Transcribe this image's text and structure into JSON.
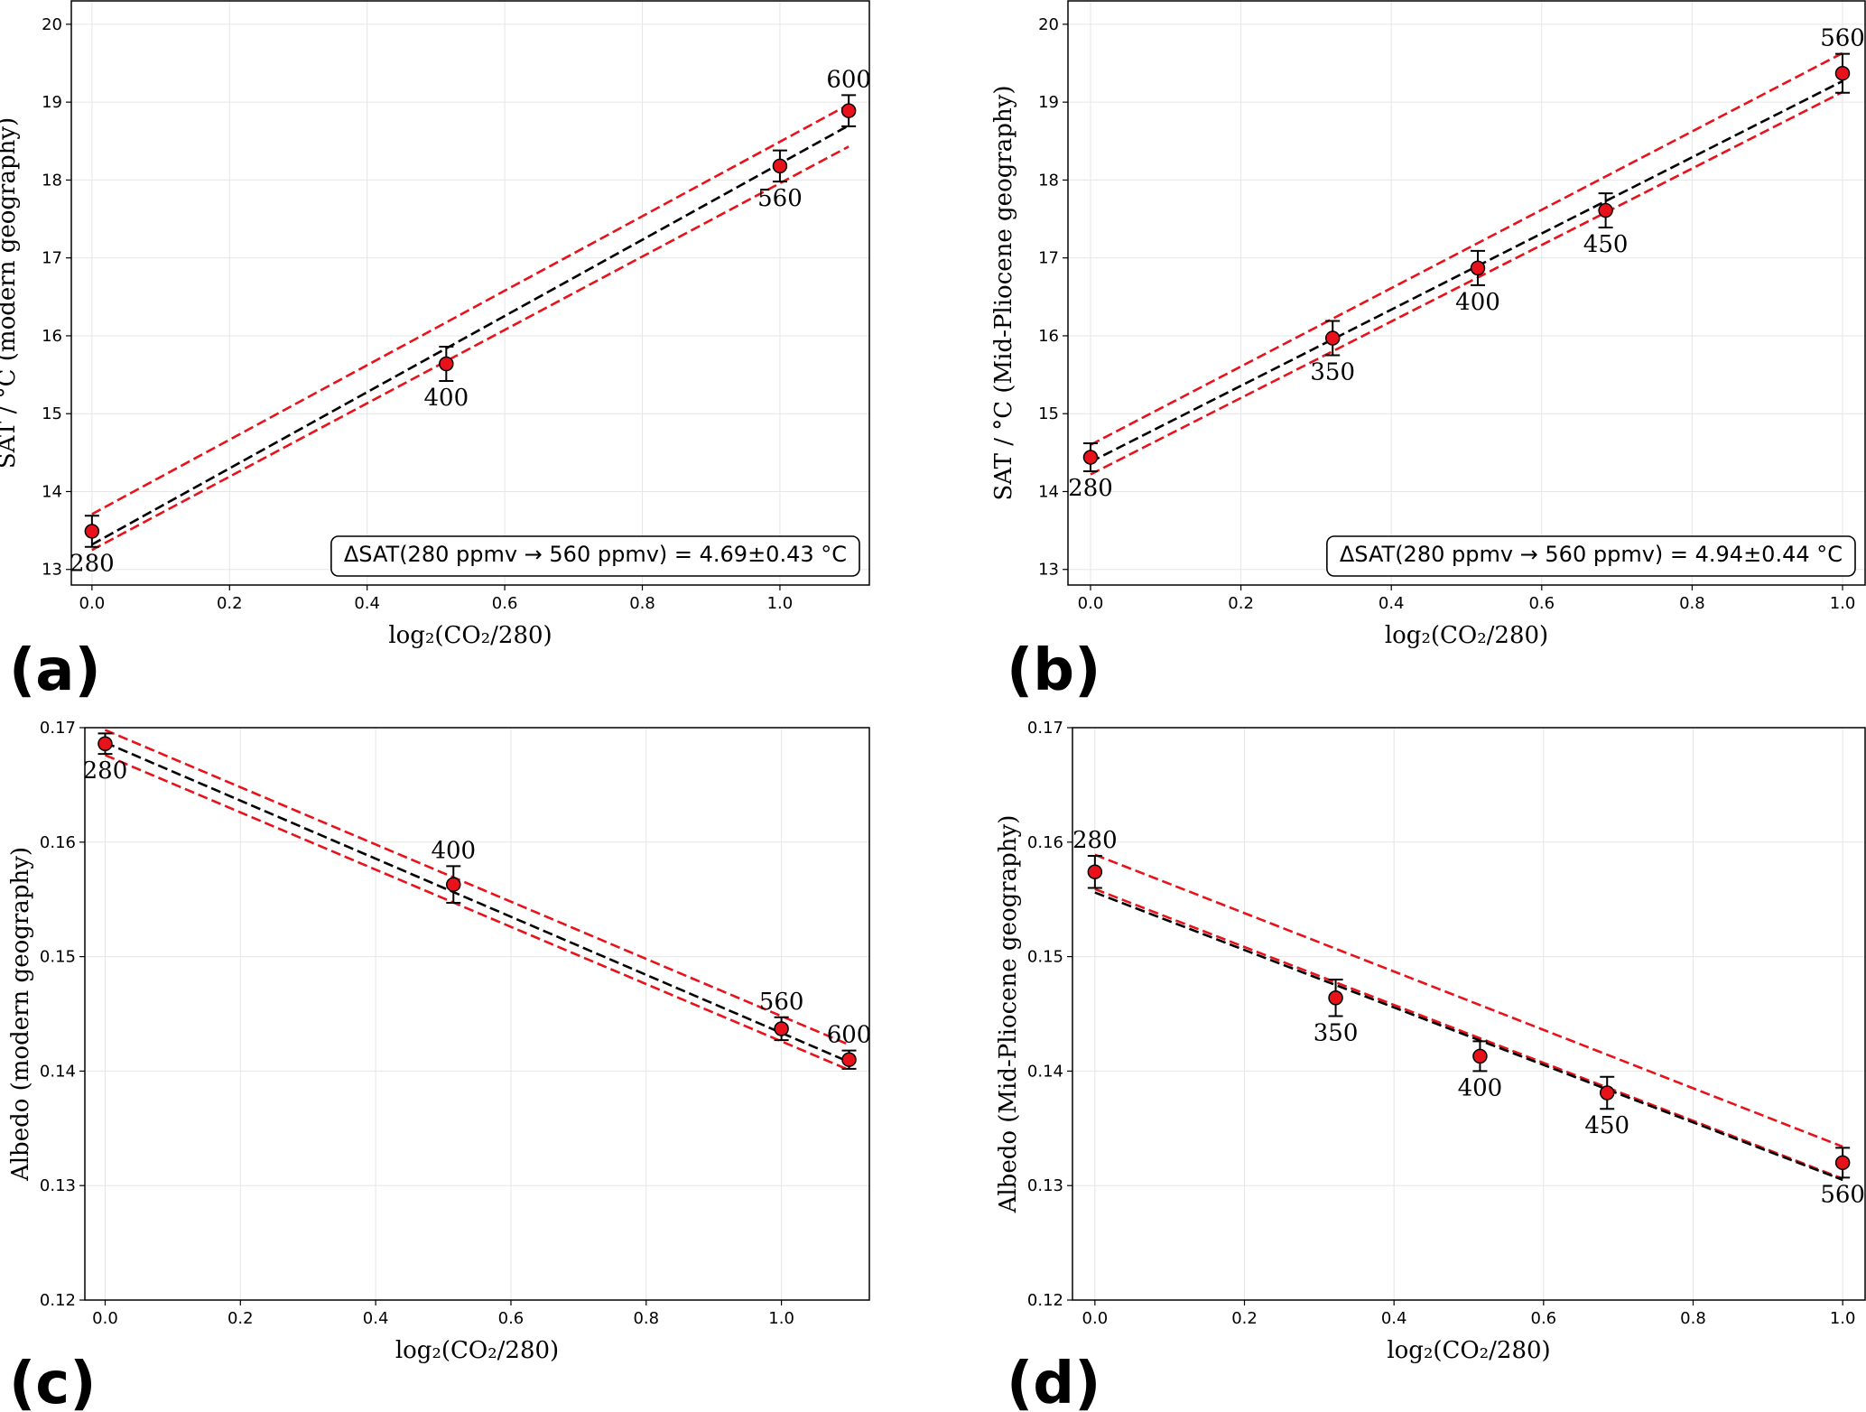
{
  "figure": {
    "panel_labels": [
      "(a)",
      "(b)",
      "(c)",
      "(d)"
    ]
  },
  "colors": {
    "fit_line": "#000000",
    "bound_line": "#e8121b",
    "marker_fill": "#e8121b",
    "grid": "#e6e6e6"
  },
  "chart_data": [
    {
      "type": "scatter",
      "panel": "(a)",
      "xlabel": "log₂(CO₂/280)",
      "ylabel": "SAT / °C (modern geography)",
      "xlim": [
        -0.03,
        1.13
      ],
      "ylim": [
        12.8,
        20.3
      ],
      "xticks": [
        0.0,
        0.2,
        0.4,
        0.6,
        0.8,
        1.0
      ],
      "xtick_labels": [
        "0.0",
        "0.2",
        "0.4",
        "0.6",
        "0.8",
        "1.0"
      ],
      "yticks": [
        13,
        14,
        15,
        16,
        17,
        18,
        19,
        20
      ],
      "ytick_labels": [
        "13",
        "14",
        "15",
        "16",
        "17",
        "18",
        "19",
        "20"
      ],
      "points": [
        {
          "x": 0.0,
          "y": 13.49,
          "err": 0.2,
          "label": "280",
          "label_pos": "below"
        },
        {
          "x": 0.515,
          "y": 15.64,
          "err": 0.22,
          "label": "400",
          "label_pos": "below"
        },
        {
          "x": 1.0,
          "y": 18.18,
          "err": 0.2,
          "label": "560",
          "label_pos": "below"
        },
        {
          "x": 1.1,
          "y": 18.89,
          "err": 0.2,
          "label": "600",
          "label_pos": "above"
        }
      ],
      "fit_line": {
        "x": [
          0.0,
          1.1
        ],
        "y": [
          13.32,
          18.7
        ]
      },
      "upper_line": {
        "x": [
          0.0,
          1.1
        ],
        "y": [
          13.71,
          18.97
        ]
      },
      "lower_line": {
        "x": [
          0.0,
          1.1
        ],
        "y": [
          13.25,
          18.43
        ]
      },
      "annotation": "ΔSAT(280 ppmv → 560 ppmv) = 4.69±0.43 °C"
    },
    {
      "type": "scatter",
      "panel": "(b)",
      "xlabel": "log₂(CO₂/280)",
      "ylabel": "SAT / °C (Mid-Pliocene geography)",
      "xlim": [
        -0.03,
        1.03
      ],
      "ylim": [
        12.8,
        20.3
      ],
      "xticks": [
        0.0,
        0.2,
        0.4,
        0.6,
        0.8,
        1.0
      ],
      "xtick_labels": [
        "0.0",
        "0.2",
        "0.4",
        "0.6",
        "0.8",
        "1.0"
      ],
      "yticks": [
        13,
        14,
        15,
        16,
        17,
        18,
        19,
        20
      ],
      "ytick_labels": [
        "13",
        "14",
        "15",
        "16",
        "17",
        "18",
        "19",
        "20"
      ],
      "points": [
        {
          "x": 0.0,
          "y": 14.44,
          "err": 0.18,
          "label": "280",
          "label_pos": "below"
        },
        {
          "x": 0.322,
          "y": 15.97,
          "err": 0.22,
          "label": "350",
          "label_pos": "below"
        },
        {
          "x": 0.515,
          "y": 16.87,
          "err": 0.22,
          "label": "400",
          "label_pos": "below"
        },
        {
          "x": 0.685,
          "y": 17.61,
          "err": 0.22,
          "label": "450",
          "label_pos": "below"
        },
        {
          "x": 1.0,
          "y": 19.37,
          "err": 0.25,
          "label": "560",
          "label_pos": "above"
        }
      ],
      "fit_line": {
        "x": [
          0.0,
          1.0
        ],
        "y": [
          14.38,
          19.27
        ]
      },
      "upper_line": {
        "x": [
          0.0,
          1.0
        ],
        "y": [
          14.6,
          19.63
        ]
      },
      "lower_line": {
        "x": [
          0.0,
          1.0
        ],
        "y": [
          14.22,
          19.13
        ]
      },
      "annotation": "ΔSAT(280 ppmv → 560 ppmv) = 4.94±0.44 °C"
    },
    {
      "type": "scatter",
      "panel": "(c)",
      "xlabel": "log₂(CO₂/280)",
      "ylabel": "Albedo (modern geography)",
      "xlim": [
        -0.03,
        1.13
      ],
      "ylim": [
        0.12,
        0.17
      ],
      "xticks": [
        0.0,
        0.2,
        0.4,
        0.6,
        0.8,
        1.0
      ],
      "xtick_labels": [
        "0.0",
        "0.2",
        "0.4",
        "0.6",
        "0.8",
        "1.0"
      ],
      "yticks": [
        0.12,
        0.13,
        0.14,
        0.15,
        0.16,
        0.17
      ],
      "ytick_labels": [
        "0.12",
        "0.13",
        "0.14",
        "0.15",
        "0.16",
        "0.17"
      ],
      "points": [
        {
          "x": 0.0,
          "y": 0.1686,
          "err": 0.0009,
          "label": "280",
          "label_pos": "below"
        },
        {
          "x": 0.515,
          "y": 0.1563,
          "err": 0.0016,
          "label": "400",
          "label_pos": "above"
        },
        {
          "x": 1.0,
          "y": 0.1437,
          "err": 0.001,
          "label": "560",
          "label_pos": "above"
        },
        {
          "x": 1.1,
          "y": 0.141,
          "err": 0.0008,
          "label": "600",
          "label_pos": "above"
        }
      ],
      "fit_line": {
        "x": [
          0.0,
          1.1
        ],
        "y": [
          0.1687,
          0.1408
        ]
      },
      "upper_line": {
        "x": [
          0.0,
          1.1
        ],
        "y": [
          0.1698,
          0.1423
        ]
      },
      "lower_line": {
        "x": [
          0.0,
          1.1
        ],
        "y": [
          0.1676,
          0.1401
        ]
      },
      "annotation": ""
    },
    {
      "type": "scatter",
      "panel": "(d)",
      "xlabel": "log₂(CO₂/280)",
      "ylabel": "Albedo (Mid-Pliocene geography)",
      "xlim": [
        -0.03,
        1.03
      ],
      "ylim": [
        0.12,
        0.17
      ],
      "xticks": [
        0.0,
        0.2,
        0.4,
        0.6,
        0.8,
        1.0
      ],
      "xtick_labels": [
        "0.0",
        "0.2",
        "0.4",
        "0.6",
        "0.8",
        "1.0"
      ],
      "yticks": [
        0.12,
        0.13,
        0.14,
        0.15,
        0.16,
        0.17
      ],
      "ytick_labels": [
        "0.12",
        "0.13",
        "0.14",
        "0.15",
        "0.16",
        "0.17"
      ],
      "points": [
        {
          "x": 0.0,
          "y": 0.1574,
          "err": 0.0014,
          "label": "280",
          "label_pos": "above"
        },
        {
          "x": 0.322,
          "y": 0.1464,
          "err": 0.0016,
          "label": "350",
          "label_pos": "below"
        },
        {
          "x": 0.515,
          "y": 0.1413,
          "err": 0.0013,
          "label": "400",
          "label_pos": "below"
        },
        {
          "x": 0.685,
          "y": 0.1381,
          "err": 0.0014,
          "label": "450",
          "label_pos": "below"
        },
        {
          "x": 1.0,
          "y": 0.132,
          "err": 0.0013,
          "label": "560",
          "label_pos": "below"
        }
      ],
      "fit_line": {
        "x": [
          0.0,
          1.0
        ],
        "y": [
          0.1556,
          0.1305
        ]
      },
      "upper_line": {
        "x": [
          0.0,
          1.0
        ],
        "y": [
          0.1589,
          0.1334
        ]
      },
      "lower_line": {
        "x": [
          0.0,
          1.0
        ],
        "y": [
          0.1559,
          0.1306
        ]
      },
      "annotation": ""
    }
  ]
}
